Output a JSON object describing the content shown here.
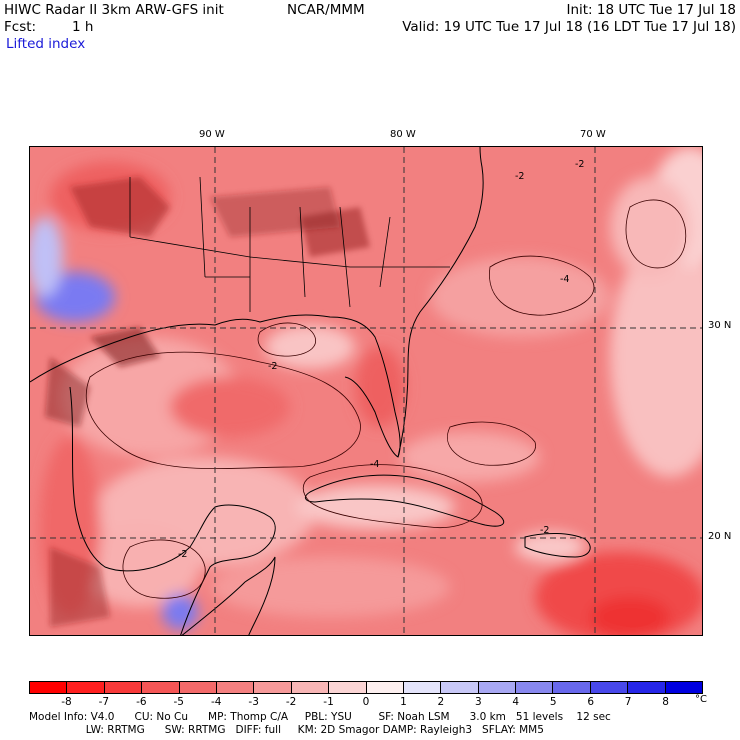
{
  "header": {
    "title": "HIWC Radar II 3km ARW-GFS init",
    "org": "NCAR/MMM",
    "init": "Init: 18 UTC Tue 17 Jul 18",
    "fcst_label": "Fcst:",
    "fcst_value": "1 h",
    "valid": "Valid: 19 UTC Tue 17 Jul 18 (16 LDT Tue 17 Jul 18)",
    "field": "Lifted index"
  },
  "map": {
    "longitude_labels": [
      "90 W",
      "80 W",
      "70 W"
    ],
    "latitude_labels": [
      "30 N",
      "20 N"
    ],
    "contour_labels": [
      "-2",
      "-2",
      "-2",
      "-4",
      "-4",
      "-2",
      "-2"
    ],
    "colors": {
      "background": "#f28080",
      "deep_red": "#f04848",
      "light_pink": "#f8b4b4",
      "very_light": "#fcdcdc",
      "blue_region": "#7a7af2",
      "land_detail": "#7a1010",
      "grid_line": "#333333"
    }
  },
  "colorbar": {
    "ticks": [
      "-8",
      "-7",
      "-6",
      "-5",
      "-4",
      "-3",
      "-2",
      "-1",
      "0",
      "1",
      "2",
      "3",
      "4",
      "5",
      "6",
      "7",
      "8"
    ],
    "unit": "°C",
    "colors": [
      "#ff0000",
      "#ff1f1f",
      "#f83a3a",
      "#f55656",
      "#f36a6a",
      "#f48080",
      "#f69a9a",
      "#f8b6b6",
      "#fbd5d5",
      "#fdf0f0",
      "#e4e4fb",
      "#c8c8f7",
      "#a8a8f3",
      "#8888ef",
      "#6868ec",
      "#4848ea",
      "#2626e8",
      "#0000e0"
    ]
  },
  "model_info": {
    "line1": "Model Info: V4.0      CU: No Cu      MP: Thomp C/A     PBL: YSU        SF: Noah LSM      3.0 km   51 levels    12 sec",
    "line2": "                 LW: RRTMG      SW: RRTMG   DIFF: full     KM: 2D Smagor DAMP: Rayleigh3   SFLAY: MM5"
  }
}
